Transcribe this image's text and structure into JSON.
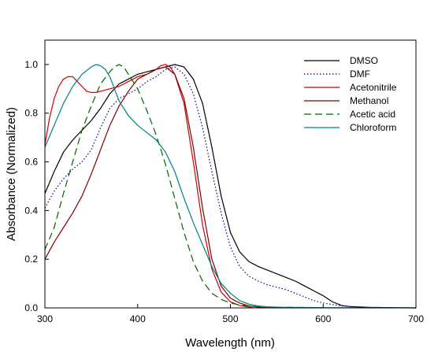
{
  "chart_data": {
    "type": "line",
    "title": "",
    "xlabel": "Wavelength (nm)",
    "ylabel": "Absorbance (Normalized)",
    "xlim": [
      300,
      700
    ],
    "ylim": [
      0,
      1.1
    ],
    "xticks": [
      300,
      400,
      500,
      600,
      700
    ],
    "xtick_labels": [
      "300",
      "400",
      "500",
      "600",
      "700"
    ],
    "yticks": [
      0,
      0.2,
      0.4,
      0.6,
      0.8,
      1.0
    ],
    "ytick_labels": [
      "0.0",
      "0.2",
      "0.4",
      "0.6",
      "0.8",
      "1.0"
    ],
    "grid": false,
    "legend_position": "top-right",
    "series": [
      {
        "name": "DMSO",
        "color": "#000000",
        "dash": "solid",
        "points": [
          [
            300,
            0.47
          ],
          [
            310,
            0.56
          ],
          [
            320,
            0.64
          ],
          [
            330,
            0.69
          ],
          [
            340,
            0.73
          ],
          [
            350,
            0.77
          ],
          [
            360,
            0.82
          ],
          [
            370,
            0.88
          ],
          [
            380,
            0.92
          ],
          [
            390,
            0.94
          ],
          [
            400,
            0.96
          ],
          [
            410,
            0.97
          ],
          [
            420,
            0.98
          ],
          [
            430,
            0.99
          ],
          [
            440,
            1.0
          ],
          [
            450,
            0.99
          ],
          [
            460,
            0.94
          ],
          [
            470,
            0.84
          ],
          [
            480,
            0.66
          ],
          [
            490,
            0.46
          ],
          [
            500,
            0.31
          ],
          [
            510,
            0.23
          ],
          [
            520,
            0.19
          ],
          [
            530,
            0.17
          ],
          [
            540,
            0.155
          ],
          [
            550,
            0.14
          ],
          [
            560,
            0.125
          ],
          [
            570,
            0.11
          ],
          [
            580,
            0.09
          ],
          [
            590,
            0.07
          ],
          [
            600,
            0.05
          ],
          [
            610,
            0.025
          ],
          [
            620,
            0.01
          ],
          [
            630,
            0.005
          ],
          [
            650,
            0.002
          ],
          [
            700,
            0.0
          ]
        ]
      },
      {
        "name": "DMF",
        "color": "#00008b",
        "dash": "dotted",
        "points": [
          [
            300,
            0.41
          ],
          [
            310,
            0.48
          ],
          [
            320,
            0.53
          ],
          [
            330,
            0.57
          ],
          [
            340,
            0.6
          ],
          [
            350,
            0.65
          ],
          [
            360,
            0.74
          ],
          [
            370,
            0.82
          ],
          [
            380,
            0.86
          ],
          [
            390,
            0.88
          ],
          [
            400,
            0.9
          ],
          [
            410,
            0.93
          ],
          [
            420,
            0.95
          ],
          [
            430,
            0.98
          ],
          [
            440,
            0.99
          ],
          [
            450,
            0.96
          ],
          [
            460,
            0.88
          ],
          [
            470,
            0.74
          ],
          [
            480,
            0.56
          ],
          [
            490,
            0.39
          ],
          [
            500,
            0.25
          ],
          [
            510,
            0.17
          ],
          [
            520,
            0.13
          ],
          [
            530,
            0.11
          ],
          [
            540,
            0.095
          ],
          [
            550,
            0.085
          ],
          [
            560,
            0.075
          ],
          [
            570,
            0.06
          ],
          [
            580,
            0.045
          ],
          [
            590,
            0.03
          ],
          [
            600,
            0.02
          ],
          [
            620,
            0.008
          ],
          [
            650,
            0.002
          ],
          [
            700,
            0.0
          ]
        ]
      },
      {
        "name": "Acetonitrile",
        "color": "#cc0000",
        "dash": "solid",
        "points": [
          [
            300,
            0.67
          ],
          [
            305,
            0.78
          ],
          [
            310,
            0.86
          ],
          [
            315,
            0.91
          ],
          [
            320,
            0.94
          ],
          [
            325,
            0.95
          ],
          [
            330,
            0.95
          ],
          [
            335,
            0.93
          ],
          [
            340,
            0.91
          ],
          [
            345,
            0.89
          ],
          [
            350,
            0.885
          ],
          [
            355,
            0.885
          ],
          [
            360,
            0.89
          ],
          [
            370,
            0.9
          ],
          [
            380,
            0.91
          ],
          [
            390,
            0.93
          ],
          [
            400,
            0.95
          ],
          [
            410,
            0.96
          ],
          [
            420,
            0.98
          ],
          [
            425,
            0.995
          ],
          [
            430,
            1.0
          ],
          [
            435,
            0.99
          ],
          [
            440,
            0.96
          ],
          [
            450,
            0.84
          ],
          [
            460,
            0.6
          ],
          [
            470,
            0.34
          ],
          [
            480,
            0.16
          ],
          [
            490,
            0.065
          ],
          [
            500,
            0.025
          ],
          [
            510,
            0.01
          ],
          [
            520,
            0.003
          ],
          [
            525,
            0.0
          ]
        ]
      },
      {
        "name": "Methanol",
        "color": "#800000",
        "dash": "solid",
        "points": [
          [
            300,
            0.2
          ],
          [
            310,
            0.27
          ],
          [
            320,
            0.33
          ],
          [
            330,
            0.39
          ],
          [
            340,
            0.46
          ],
          [
            350,
            0.55
          ],
          [
            360,
            0.65
          ],
          [
            370,
            0.75
          ],
          [
            380,
            0.83
          ],
          [
            390,
            0.89
          ],
          [
            400,
            0.94
          ],
          [
            410,
            0.96
          ],
          [
            420,
            0.98
          ],
          [
            430,
            0.99
          ],
          [
            440,
            0.96
          ],
          [
            450,
            0.86
          ],
          [
            460,
            0.66
          ],
          [
            470,
            0.41
          ],
          [
            480,
            0.2
          ],
          [
            490,
            0.09
          ],
          [
            500,
            0.04
          ],
          [
            510,
            0.02
          ],
          [
            520,
            0.008
          ],
          [
            530,
            0.003
          ],
          [
            540,
            0.001
          ]
        ]
      },
      {
        "name": "Acetic acid",
        "color": "#006400",
        "dash": "dashed",
        "points": [
          [
            300,
            0.24
          ],
          [
            310,
            0.33
          ],
          [
            320,
            0.47
          ],
          [
            330,
            0.6
          ],
          [
            340,
            0.73
          ],
          [
            350,
            0.83
          ],
          [
            360,
            0.92
          ],
          [
            370,
            0.97
          ],
          [
            375,
            0.99
          ],
          [
            380,
            1.0
          ],
          [
            385,
            0.99
          ],
          [
            390,
            0.96
          ],
          [
            400,
            0.9
          ],
          [
            410,
            0.81
          ],
          [
            420,
            0.71
          ],
          [
            430,
            0.59
          ],
          [
            440,
            0.45
          ],
          [
            450,
            0.31
          ],
          [
            460,
            0.19
          ],
          [
            470,
            0.11
          ],
          [
            480,
            0.06
          ],
          [
            490,
            0.035
          ],
          [
            500,
            0.02
          ],
          [
            510,
            0.012
          ],
          [
            520,
            0.008
          ],
          [
            530,
            0.005
          ],
          [
            550,
            0.003
          ],
          [
            570,
            0.002
          ],
          [
            600,
            0.001
          ]
        ]
      },
      {
        "name": "Chloroform",
        "color": "#008080",
        "dash": "solid",
        "points": [
          [
            300,
            0.66
          ],
          [
            310,
            0.75
          ],
          [
            320,
            0.84
          ],
          [
            330,
            0.91
          ],
          [
            340,
            0.96
          ],
          [
            350,
            0.99
          ],
          [
            355,
            1.0
          ],
          [
            360,
            0.995
          ],
          [
            365,
            0.98
          ],
          [
            370,
            0.95
          ],
          [
            375,
            0.9
          ],
          [
            380,
            0.85
          ],
          [
            390,
            0.79
          ],
          [
            400,
            0.75
          ],
          [
            410,
            0.72
          ],
          [
            420,
            0.69
          ],
          [
            430,
            0.64
          ],
          [
            440,
            0.56
          ],
          [
            450,
            0.45
          ],
          [
            460,
            0.35
          ],
          [
            470,
            0.26
          ],
          [
            480,
            0.17
          ],
          [
            490,
            0.1
          ],
          [
            500,
            0.06
          ],
          [
            510,
            0.03
          ],
          [
            520,
            0.015
          ],
          [
            530,
            0.008
          ],
          [
            540,
            0.004
          ],
          [
            560,
            0.002
          ],
          [
            600,
            0.001
          ],
          [
            700,
            0.0
          ]
        ]
      }
    ]
  }
}
